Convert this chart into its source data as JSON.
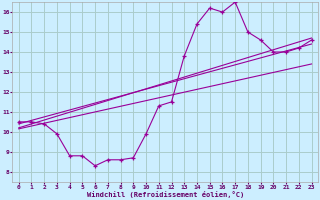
{
  "xlabel": "Windchill (Refroidissement éolien,°C)",
  "ylabel": "",
  "bg_color": "#cceeff",
  "grid_color": "#aacccc",
  "line_color": "#990099",
  "xlim": [
    -0.5,
    23.5
  ],
  "ylim": [
    7.5,
    16.5
  ],
  "xticks": [
    0,
    1,
    2,
    3,
    4,
    5,
    6,
    7,
    8,
    9,
    10,
    11,
    12,
    13,
    14,
    15,
    16,
    17,
    18,
    19,
    20,
    21,
    22,
    23
  ],
  "yticks": [
    8,
    9,
    10,
    11,
    12,
    13,
    14,
    15,
    16
  ],
  "curve1_x": [
    0,
    1,
    2,
    3,
    4,
    5,
    6,
    7,
    8,
    9,
    10,
    11,
    12,
    13,
    14,
    15,
    16,
    17,
    18,
    19,
    20,
    21,
    22,
    23
  ],
  "curve1_y": [
    10.5,
    10.5,
    10.4,
    9.9,
    8.8,
    8.8,
    8.3,
    8.6,
    8.6,
    8.7,
    9.9,
    11.3,
    11.5,
    13.8,
    15.4,
    16.2,
    16.0,
    16.5,
    15.0,
    14.6,
    14.0,
    14.0,
    14.2,
    14.6
  ],
  "line1_x": [
    0,
    23
  ],
  "line1_y": [
    10.4,
    14.4
  ],
  "line2_x": [
    0,
    23
  ],
  "line2_y": [
    10.2,
    14.7
  ],
  "line3_x": [
    0,
    23
  ],
  "line3_y": [
    10.15,
    13.4
  ],
  "marker": "+"
}
